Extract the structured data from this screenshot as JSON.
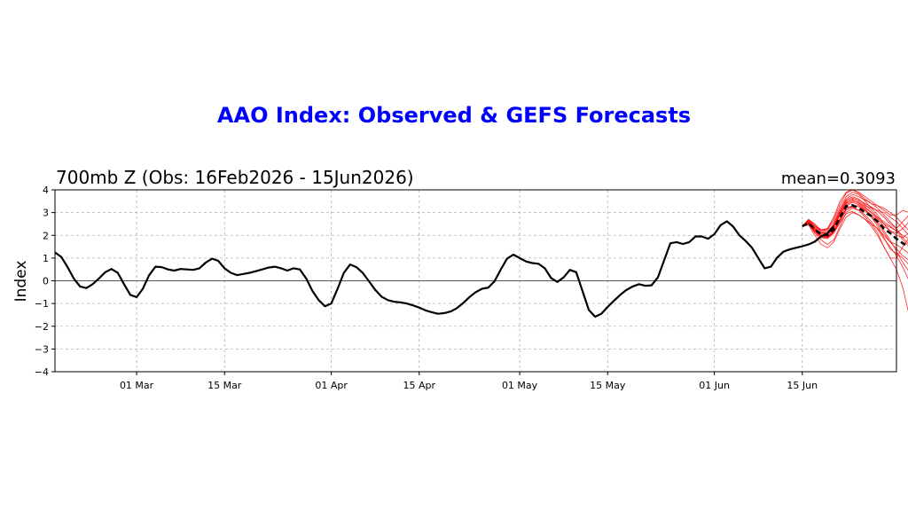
{
  "chart_data": {
    "type": "line",
    "title": "AAO Index: Observed & GEFS Forecasts",
    "subtitle": "700mb Z (Obs: 16Feb2026 - 15Jun2026)",
    "mean_label": "mean=0.3093",
    "ylabel": "Index",
    "xlabel": "",
    "ylim": [
      -4,
      4
    ],
    "yticks": [
      -4,
      -3,
      -2,
      -1,
      0,
      1,
      2,
      3,
      4
    ],
    "xlim": [
      "2026-02-16",
      "2026-06-30"
    ],
    "xticks": [
      {
        "date": "2026-03-01",
        "label": "01 Mar"
      },
      {
        "date": "2026-03-15",
        "label": "15 Mar"
      },
      {
        "date": "2026-04-01",
        "label": "01 Apr"
      },
      {
        "date": "2026-04-15",
        "label": "15 Apr"
      },
      {
        "date": "2026-05-01",
        "label": "01 May"
      },
      {
        "date": "2026-05-15",
        "label": "15 May"
      },
      {
        "date": "2026-06-01",
        "label": "01 Jun"
      },
      {
        "date": "2026-06-15",
        "label": "15 Jun"
      }
    ],
    "grid": true,
    "colors": {
      "observed": "#000000",
      "members": "#ff0000",
      "mean": "#000000",
      "title": "#0000ff"
    },
    "observed": {
      "start": "2026-02-16",
      "values": [
        1.25,
        1.05,
        0.6,
        0.1,
        -0.25,
        -0.32,
        -0.15,
        0.1,
        0.38,
        0.52,
        0.35,
        -0.15,
        -0.62,
        -0.72,
        -0.35,
        0.25,
        0.62,
        0.6,
        0.5,
        0.45,
        0.52,
        0.5,
        0.48,
        0.55,
        0.8,
        0.97,
        0.88,
        0.55,
        0.35,
        0.25,
        0.3,
        0.35,
        0.42,
        0.5,
        0.58,
        0.62,
        0.55,
        0.45,
        0.55,
        0.5,
        0.1,
        -0.45,
        -0.85,
        -1.12,
        -1.0,
        -0.35,
        0.35,
        0.72,
        0.6,
        0.35,
        -0.02,
        -0.4,
        -0.7,
        -0.85,
        -0.92,
        -0.95,
        -1.0,
        -1.08,
        -1.18,
        -1.3,
        -1.38,
        -1.45,
        -1.42,
        -1.35,
        -1.2,
        -0.98,
        -0.72,
        -0.5,
        -0.35,
        -0.3,
        -0.02,
        0.5,
        0.98,
        1.15,
        1.0,
        0.85,
        0.78,
        0.75,
        0.55,
        0.12,
        -0.05,
        0.15,
        0.48,
        0.38,
        -0.45,
        -1.28,
        -1.58,
        -1.45,
        -1.15,
        -0.88,
        -0.62,
        -0.4,
        -0.25,
        -0.15,
        -0.22,
        -0.2,
        0.15,
        0.9,
        1.65,
        1.7,
        1.62,
        1.7,
        1.95,
        1.95,
        1.85,
        2.05,
        2.45,
        2.62,
        2.38,
        2.0,
        1.75,
        1.45,
        1.0,
        0.55,
        0.62,
        1.02,
        1.28,
        1.38,
        1.45,
        1.52,
        1.6,
        1.72,
        1.95,
        2.08,
        2.4
      ]
    },
    "ensemble_mean": {
      "start": "2026-06-15",
      "values": [
        2.4,
        2.55,
        2.25,
        2.05,
        2.0,
        2.25,
        2.8,
        3.28,
        3.32,
        3.2,
        3.0,
        2.85,
        2.6,
        2.3,
        2.1,
        1.85,
        1.65,
        1.48
      ]
    },
    "ensemble_members": [
      {
        "start": "2026-06-15",
        "values": [
          2.4,
          2.7,
          2.5,
          2.2,
          2.3,
          2.8,
          3.5,
          3.9,
          4.0,
          3.85,
          3.6,
          3.4,
          3.2,
          2.9,
          2.6,
          2.3,
          1.9,
          1.6
        ]
      },
      {
        "start": "2026-06-15",
        "values": [
          2.4,
          2.5,
          2.1,
          1.8,
          1.6,
          1.8,
          2.4,
          3.0,
          3.2,
          3.1,
          2.8,
          2.5,
          2.1,
          1.5,
          1.0,
          0.5,
          -0.3,
          -1.5
        ]
      },
      {
        "start": "2026-06-15",
        "values": [
          2.4,
          2.6,
          2.3,
          2.1,
          2.1,
          2.5,
          3.1,
          3.6,
          3.8,
          3.7,
          3.55,
          3.4,
          3.3,
          3.2,
          3.0,
          2.8,
          2.5,
          2.2
        ]
      },
      {
        "start": "2026-06-15",
        "values": [
          2.4,
          2.45,
          2.0,
          1.6,
          1.45,
          1.7,
          2.3,
          2.8,
          3.0,
          2.9,
          2.7,
          2.4,
          2.0,
          1.5,
          1.0,
          1.0,
          1.5,
          1.9
        ]
      },
      {
        "start": "2026-06-15",
        "values": [
          2.4,
          2.65,
          2.4,
          2.2,
          2.25,
          2.6,
          3.2,
          3.7,
          3.9,
          3.8,
          3.5,
          3.2,
          2.9,
          2.5,
          2.2,
          2.0,
          1.9,
          2.1
        ]
      },
      {
        "start": "2026-06-15",
        "values": [
          2.4,
          2.55,
          2.2,
          2.0,
          1.9,
          2.1,
          2.6,
          3.1,
          3.3,
          3.25,
          3.1,
          2.9,
          2.6,
          2.2,
          1.8,
          1.3,
          0.8,
          0.4
        ]
      },
      {
        "start": "2026-06-15",
        "values": [
          2.4,
          2.6,
          2.35,
          2.15,
          2.15,
          2.4,
          3.0,
          3.4,
          3.6,
          3.5,
          3.3,
          3.2,
          3.1,
          3.0,
          2.8,
          2.6,
          2.3,
          2.0
        ]
      },
      {
        "start": "2026-06-15",
        "values": [
          2.4,
          2.5,
          2.2,
          1.9,
          1.9,
          2.2,
          2.7,
          3.2,
          3.3,
          3.3,
          3.1,
          2.8,
          2.4,
          1.9,
          1.4,
          1.2,
          1.0,
          0.7
        ]
      },
      {
        "start": "2026-06-15",
        "values": [
          2.4,
          2.7,
          2.45,
          2.25,
          2.3,
          2.7,
          3.35,
          3.85,
          4.0,
          3.9,
          3.7,
          3.5,
          3.3,
          3.1,
          2.9,
          2.9,
          3.1,
          3.0
        ]
      },
      {
        "start": "2026-06-15",
        "values": [
          2.4,
          2.5,
          2.15,
          1.9,
          1.85,
          2.1,
          2.55,
          2.95,
          3.05,
          2.9,
          2.7,
          2.5,
          2.3,
          2.0,
          1.7,
          1.4,
          1.1,
          0.9
        ]
      },
      {
        "start": "2026-06-15",
        "values": [
          2.4,
          2.6,
          2.3,
          2.05,
          2.0,
          2.3,
          2.9,
          3.45,
          3.55,
          3.4,
          3.2,
          3.0,
          2.7,
          2.4,
          2.2,
          2.1,
          2.3,
          2.6
        ]
      },
      {
        "start": "2026-06-15",
        "values": [
          2.4,
          2.55,
          2.25,
          2.0,
          1.95,
          2.2,
          2.75,
          3.3,
          3.45,
          3.35,
          3.15,
          2.85,
          2.5,
          2.1,
          1.7,
          1.6,
          1.4,
          1.2
        ]
      },
      {
        "start": "2026-06-15",
        "values": [
          2.4,
          2.65,
          2.4,
          2.2,
          2.2,
          2.45,
          3.05,
          3.55,
          3.7,
          3.6,
          3.35,
          3.1,
          2.8,
          2.6,
          2.4,
          2.2,
          1.8,
          1.5
        ]
      },
      {
        "start": "2026-06-15",
        "values": [
          2.4,
          2.5,
          2.2,
          1.95,
          1.9,
          2.15,
          2.65,
          3.15,
          3.25,
          3.1,
          2.9,
          2.6,
          2.25,
          1.85,
          1.5,
          1.1,
          0.6,
          0.0
        ]
      },
      {
        "start": "2026-06-15",
        "values": [
          2.4,
          2.6,
          2.3,
          2.1,
          2.05,
          2.35,
          2.95,
          3.5,
          3.65,
          3.55,
          3.4,
          3.25,
          3.05,
          2.8,
          2.5,
          2.3,
          2.6,
          2.9
        ]
      },
      {
        "start": "2026-06-15",
        "values": [
          2.4,
          2.55,
          2.3,
          2.1,
          2.1,
          2.4,
          2.9,
          3.35,
          3.5,
          3.45,
          3.25,
          3.0,
          2.75,
          2.5,
          2.35,
          2.2,
          2.0,
          1.85
        ]
      }
    ]
  }
}
